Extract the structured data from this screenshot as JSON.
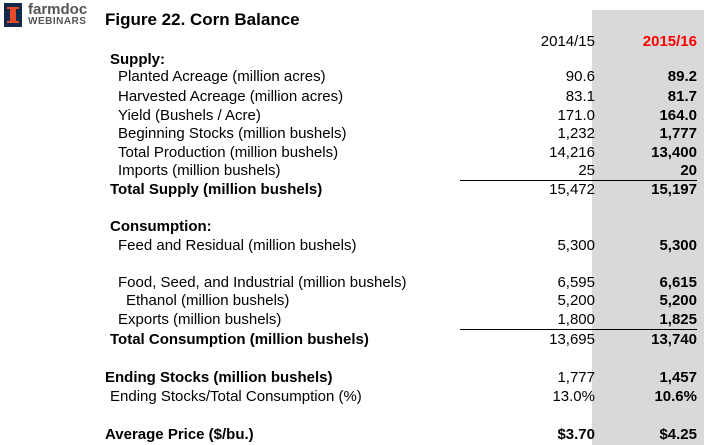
{
  "logo": {
    "name": "farmdoc",
    "sub": "WEBINARS"
  },
  "title": "Figure 22. Corn Balance",
  "columns": {
    "c1": "2014/15",
    "c2": "2015/16"
  },
  "rows": [
    {
      "label": "Supply:",
      "v1": "",
      "v2": ""
    },
    {
      "label": "Planted Acreage (million acres)",
      "v1": "90.6",
      "v2": "89.2"
    },
    {
      "label": "Harvested Acreage (million acres)",
      "v1": "83.1",
      "v2": "81.7"
    },
    {
      "label": "Yield (Bushels / Acre)",
      "v1": "171.0",
      "v2": "164.0"
    },
    {
      "label": "Beginning Stocks (million bushels)",
      "v1": "1,232",
      "v2": "1,777"
    },
    {
      "label": "Total Production (million bushels)",
      "v1": "14,216",
      "v2": "13,400"
    },
    {
      "label": "Imports (million bushels)",
      "v1": "25",
      "v2": "20"
    },
    {
      "label": "Total Supply (million bushels)",
      "v1": "15,472",
      "v2": "15,197"
    },
    {
      "label": "Consumption:",
      "v1": "",
      "v2": ""
    },
    {
      "label": "Feed and Residual (million bushels)",
      "v1": "5,300",
      "v2": "5,300"
    },
    {
      "label": "Food, Seed, and Industrial (million bushels)",
      "v1": "6,595",
      "v2": "6,615"
    },
    {
      "label": "Ethanol (million bushels)",
      "v1": "5,200",
      "v2": "5,200"
    },
    {
      "label": "Exports (million bushels)",
      "v1": "1,800",
      "v2": "1,825"
    },
    {
      "label": "Total Consumption (million bushels)",
      "v1": "13,695",
      "v2": "13,740"
    },
    {
      "label": "Ending Stocks (million bushels)",
      "v1": "1,777",
      "v2": "1,457"
    },
    {
      "label": "Ending Stocks/Total Consumption (%)",
      "v1": "13.0%",
      "v2": "10.6%"
    },
    {
      "label": "Average Price ($/bu.)",
      "v1": "$3.70",
      "v2": "$4.25"
    }
  ]
}
